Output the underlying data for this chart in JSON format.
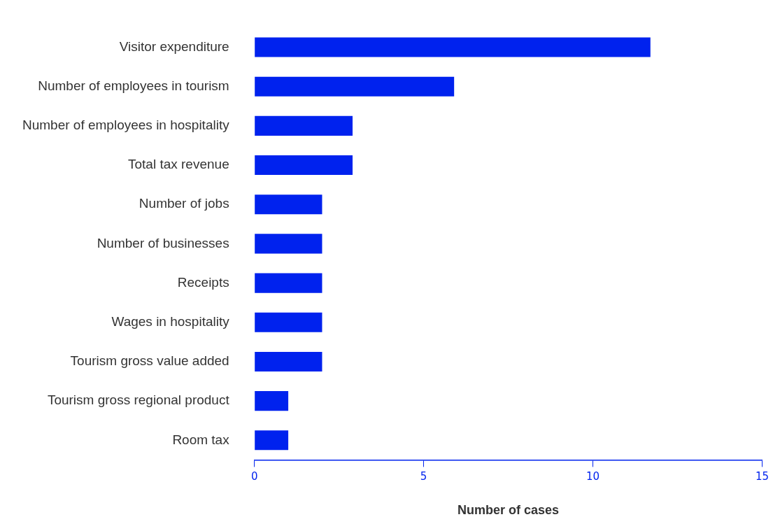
{
  "chart_data": {
    "type": "bar",
    "orientation": "horizontal",
    "xlabel": "Number of cases",
    "categories": [
      "Visitor expenditure",
      "Number of employees in tourism",
      "Number of employees in hospitality",
      "Total tax revenue",
      "Number of jobs",
      "Number of businesses",
      "Receipts",
      "Wages in hospitality",
      "Tourism gross value added",
      "Tourism gross regional product",
      "Room tax"
    ],
    "values": [
      11.7,
      5.9,
      2.9,
      2.9,
      2,
      2,
      2,
      2,
      2,
      1,
      1
    ],
    "color": "#0022ee",
    "xlim": [
      0,
      15
    ],
    "xticks": [
      0,
      5,
      10,
      15
    ],
    "grid": false,
    "legend": false
  }
}
